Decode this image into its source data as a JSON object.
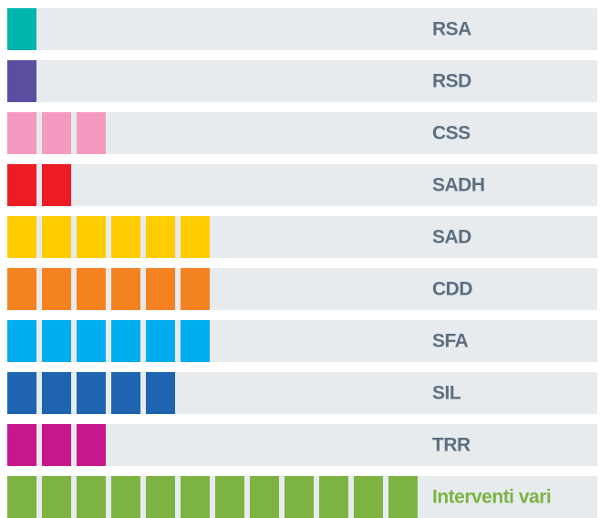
{
  "chart_data": {
    "type": "pictogram",
    "categories": [
      "RSA",
      "RSD",
      "CSS",
      "SADH",
      "SAD",
      "CDD",
      "SFA",
      "SIL",
      "TRR",
      "Interventi vari"
    ],
    "values": [
      1,
      1,
      3,
      2,
      6,
      6,
      6,
      5,
      3,
      12
    ],
    "colors": [
      "#00b5ad",
      "#5b4ea0",
      "#f49ac1",
      "#ed1c24",
      "#ffcc00",
      "#f58220",
      "#00aeef",
      "#1e64b0",
      "#c8168c",
      "#7cb342"
    ],
    "label_colors": [
      "#5d6f80",
      "#5d6f80",
      "#5d6f80",
      "#5d6f80",
      "#5d6f80",
      "#5d6f80",
      "#5d6f80",
      "#5d6f80",
      "#5d6f80",
      "#7cb342"
    ],
    "row_color": "#e7ebee"
  }
}
